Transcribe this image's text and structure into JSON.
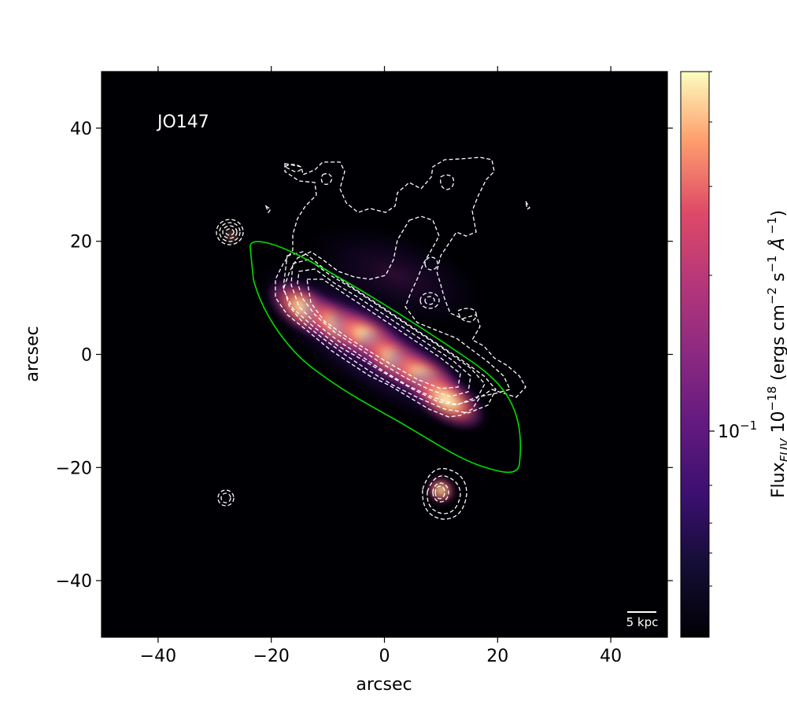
{
  "chart_data": {
    "type": "heatmap",
    "object_label": "JO147",
    "xlabel": "arcsec",
    "ylabel": "arcsec",
    "xlim": [
      -50,
      50
    ],
    "ylim": [
      -50,
      50
    ],
    "xticks": [
      -40,
      -20,
      0,
      20,
      40
    ],
    "yticks": [
      -40,
      -20,
      0,
      20,
      40
    ],
    "x_tick_labels": [
      "−40",
      "−20",
      "0",
      "20",
      "40"
    ],
    "y_tick_labels": [
      "−40",
      "−20",
      "0",
      "20",
      "40"
    ],
    "grid": false,
    "colormap": "magma",
    "background_color": "#000004",
    "colorbar": {
      "label_flux": "Flux",
      "label_sub": "FUV",
      "label_units_pre": " 10",
      "label_exp1": "−18",
      "label_units_mid": " (ergs cm",
      "label_exp2": "−2",
      "label_units_s": " s",
      "label_exp3": "−1",
      "label_units_A": " Å",
      "label_exp4": " −1",
      "label_close": ")",
      "scale": "log",
      "tick_label_base": "10",
      "tick_label_exp": "−1",
      "tick_value": 0.1
    },
    "scale_bar_label": "5 kpc",
    "disk_ellipse": {
      "center": [
        1,
        -0.5
      ],
      "semi_major": 26.5,
      "semi_minor": 5.5,
      "angle_deg": -33,
      "color": "#00dd00"
    },
    "contour_color": "#ffffff",
    "emission_sources": [
      {
        "x": -14,
        "y": 8,
        "peak": 1.0
      },
      {
        "x": -8,
        "y": 5,
        "peak": 1.0
      },
      {
        "x": -3,
        "y": 3,
        "peak": 0.95
      },
      {
        "x": 2,
        "y": -1,
        "peak": 1.0
      },
      {
        "x": 7,
        "y": -4,
        "peak": 0.95
      },
      {
        "x": 11,
        "y": -8,
        "peak": 0.9
      },
      {
        "x": 10,
        "y": -24,
        "peak": 0.55
      },
      {
        "x": -27,
        "y": 21,
        "peak": 0.08
      }
    ]
  }
}
